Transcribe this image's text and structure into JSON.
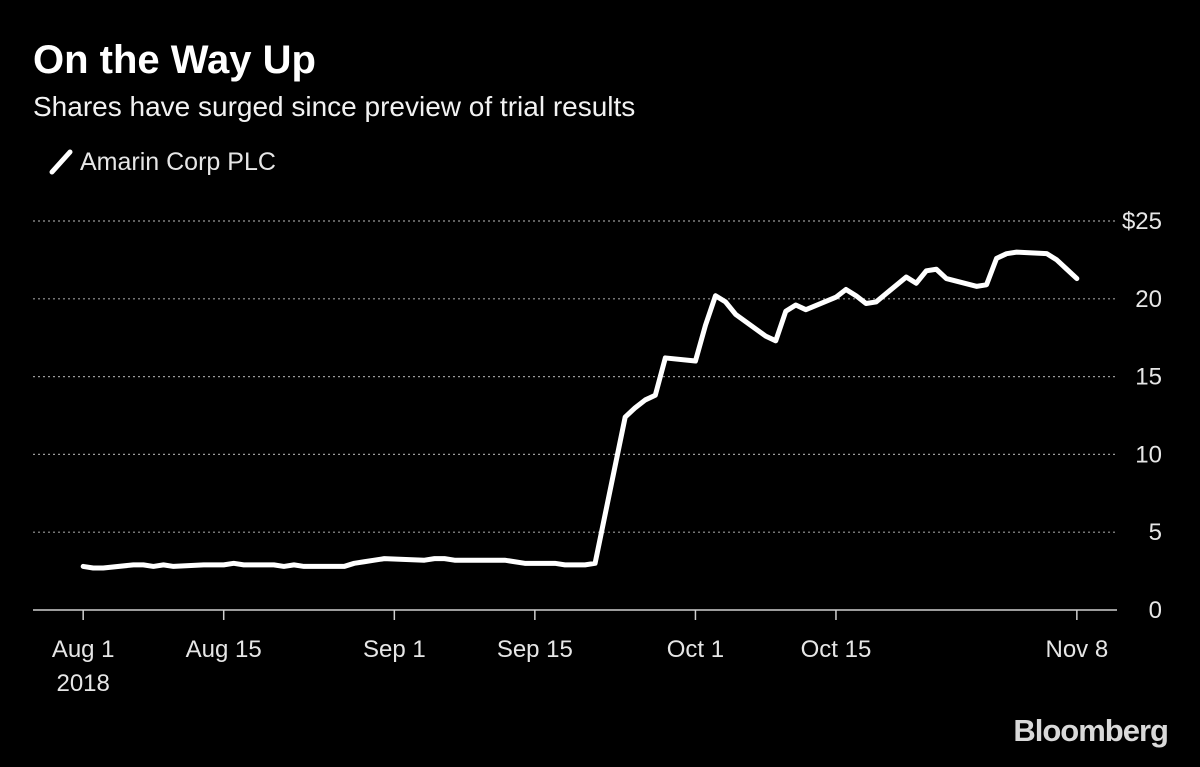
{
  "chart_data": {
    "type": "line",
    "title": "On the Way Up",
    "subtitle": "Shares have surged since preview of trial results",
    "source": "Bloomberg",
    "x": [
      "2018-08-01",
      "2018-08-02",
      "2018-08-03",
      "2018-08-06",
      "2018-08-07",
      "2018-08-08",
      "2018-08-09",
      "2018-08-10",
      "2018-08-13",
      "2018-08-14",
      "2018-08-15",
      "2018-08-16",
      "2018-08-17",
      "2018-08-20",
      "2018-08-21",
      "2018-08-22",
      "2018-08-23",
      "2018-08-24",
      "2018-08-27",
      "2018-08-28",
      "2018-08-29",
      "2018-08-30",
      "2018-08-31",
      "2018-09-04",
      "2018-09-05",
      "2018-09-06",
      "2018-09-07",
      "2018-09-10",
      "2018-09-11",
      "2018-09-12",
      "2018-09-13",
      "2018-09-14",
      "2018-09-17",
      "2018-09-18",
      "2018-09-19",
      "2018-09-20",
      "2018-09-21",
      "2018-09-24",
      "2018-09-25",
      "2018-09-26",
      "2018-09-27",
      "2018-09-28",
      "2018-10-01",
      "2018-10-02",
      "2018-10-03",
      "2018-10-04",
      "2018-10-05",
      "2018-10-08",
      "2018-10-09",
      "2018-10-10",
      "2018-10-11",
      "2018-10-12",
      "2018-10-15",
      "2018-10-16",
      "2018-10-17",
      "2018-10-18",
      "2018-10-19",
      "2018-10-22",
      "2018-10-23",
      "2018-10-24",
      "2018-10-25",
      "2018-10-26",
      "2018-10-29",
      "2018-10-30",
      "2018-10-31",
      "2018-11-01",
      "2018-11-02",
      "2018-11-05",
      "2018-11-06",
      "2018-11-07",
      "2018-11-08"
    ],
    "series": [
      {
        "name": "Amarin Corp PLC",
        "color": "#ffffff",
        "values": [
          2.8,
          2.7,
          2.7,
          2.9,
          2.9,
          2.8,
          2.9,
          2.8,
          2.9,
          2.9,
          2.9,
          3.0,
          2.9,
          2.9,
          2.8,
          2.9,
          2.8,
          2.8,
          2.8,
          3.0,
          3.1,
          3.2,
          3.3,
          3.2,
          3.3,
          3.3,
          3.2,
          3.2,
          3.2,
          3.2,
          3.1,
          3.0,
          3.0,
          2.9,
          2.9,
          2.9,
          3.0,
          12.4,
          13.0,
          13.5,
          13.8,
          16.2,
          16.0,
          18.3,
          20.2,
          19.8,
          19.0,
          17.6,
          17.3,
          19.2,
          19.6,
          19.3,
          20.1,
          20.6,
          20.2,
          19.7,
          19.8,
          21.4,
          21.0,
          21.8,
          21.9,
          21.3,
          20.8,
          20.9,
          22.6,
          22.9,
          23.0,
          22.9,
          22.5,
          21.9,
          21.3
        ]
      }
    ],
    "xlim": [
      "2018-07-27",
      "2018-11-12"
    ],
    "xticks": [
      {
        "value": "2018-08-01",
        "label": "Aug 1"
      },
      {
        "value": "2018-08-15",
        "label": "Aug 15"
      },
      {
        "value": "2018-09-01",
        "label": "Sep 1"
      },
      {
        "value": "2018-09-15",
        "label": "Sep 15"
      },
      {
        "value": "2018-10-01",
        "label": "Oct 1"
      },
      {
        "value": "2018-10-15",
        "label": "Oct 15"
      },
      {
        "value": "2018-11-08",
        "label": "Nov 8"
      }
    ],
    "x_year_label": "2018",
    "ylim": [
      0,
      25
    ],
    "yticks": [
      0,
      5,
      10,
      15,
      20,
      {
        "value": 25,
        "label": "$25"
      }
    ],
    "grid": true
  }
}
